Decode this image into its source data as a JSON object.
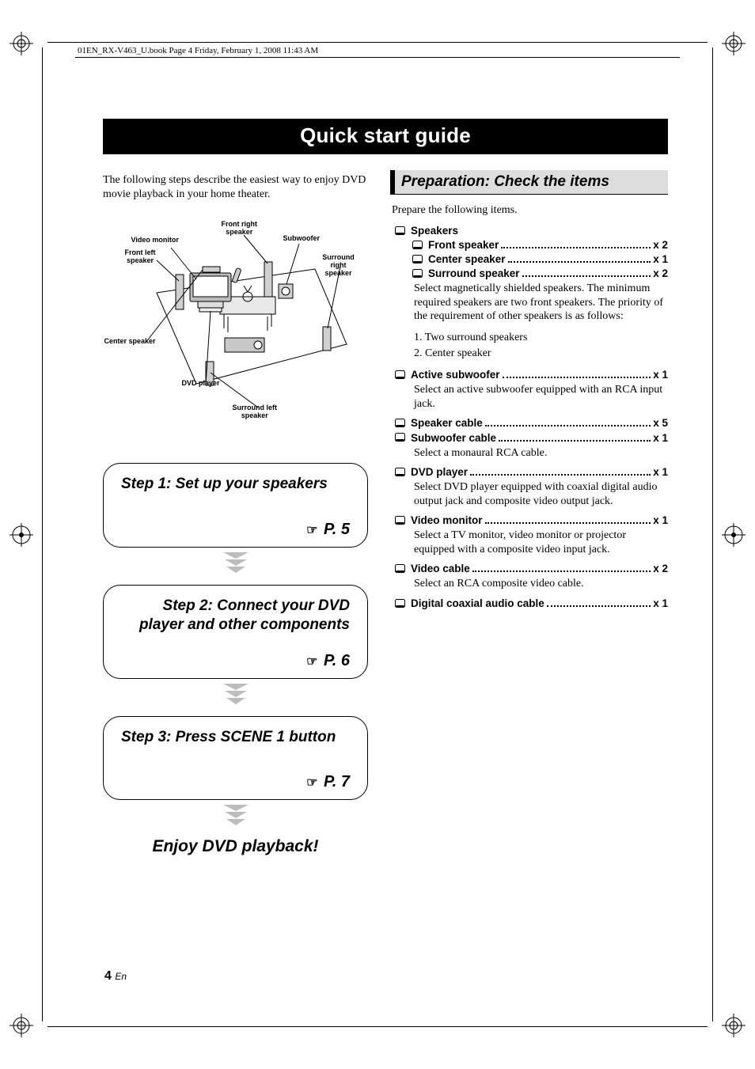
{
  "header": {
    "crop_info": "01EN_RX-V463_U.book  Page 4  Friday, February 1, 2008  11:43 AM"
  },
  "title": "Quick start guide",
  "intro": "The following steps describe the easiest way to enjoy DVD movie playback in your home theater.",
  "diagram": {
    "labels": {
      "video_monitor": "Video monitor",
      "front_right": "Front right\nspeaker",
      "subwoofer": "Subwoofer",
      "front_left": "Front left\nspeaker",
      "surround_right": "Surround right\nspeaker",
      "center": "Center speaker",
      "dvd": "DVD player",
      "surround_left": "Surround left\nspeaker"
    }
  },
  "steps": [
    {
      "title": "Step 1: Set up your speakers",
      "page": "P. 5"
    },
    {
      "title": "Step 2: Connect your DVD player and other components",
      "page": "P. 6"
    },
    {
      "title": "Step 3: Press SCENE 1 button",
      "page": "P. 7"
    }
  ],
  "enjoy": "Enjoy DVD playback!",
  "prep": {
    "heading": "Preparation: Check the items",
    "intro": "Prepare the following items.",
    "speakers": {
      "header": "Speakers",
      "front": {
        "label": "Front speaker",
        "qty": "x 2"
      },
      "center": {
        "label": "Center speaker",
        "qty": "x 1"
      },
      "surround": {
        "label": "Surround speaker",
        "qty": "x 2"
      },
      "note": "Select magnetically shielded speakers. The minimum required speakers are two front speakers. The priority of the requirement of other speakers is as follows:",
      "priority": [
        "1. Two surround speakers",
        "2. Center speaker"
      ]
    },
    "subwoofer": {
      "label": "Active subwoofer",
      "qty": "x 1",
      "note": "Select an active subwoofer equipped with an RCA input jack."
    },
    "speaker_cable": {
      "label": "Speaker cable",
      "qty": "x 5"
    },
    "sub_cable": {
      "label": "Subwoofer cable",
      "qty": "x 1",
      "note": "Select a monaural RCA cable."
    },
    "dvd": {
      "label": "DVD player",
      "qty": "x 1",
      "note": "Select DVD player equipped with coaxial digital audio output jack and composite video output jack."
    },
    "monitor": {
      "label": "Video monitor",
      "qty": "x 1",
      "note": "Select a TV monitor, video monitor or projector equipped with a composite video input jack."
    },
    "video_cable": {
      "label": "Video cable",
      "qty": "x 2",
      "note": "Select an RCA composite video cable."
    },
    "coax": {
      "label": "Digital coaxial audio cable",
      "qty": "x 1"
    }
  },
  "footer": {
    "page_number": "4",
    "lang": "En"
  },
  "colors": {
    "title_bg": "#000000",
    "title_fg": "#ffffff",
    "section_bg": "#dddddd",
    "arrow_fill": "#bdbdbd"
  }
}
